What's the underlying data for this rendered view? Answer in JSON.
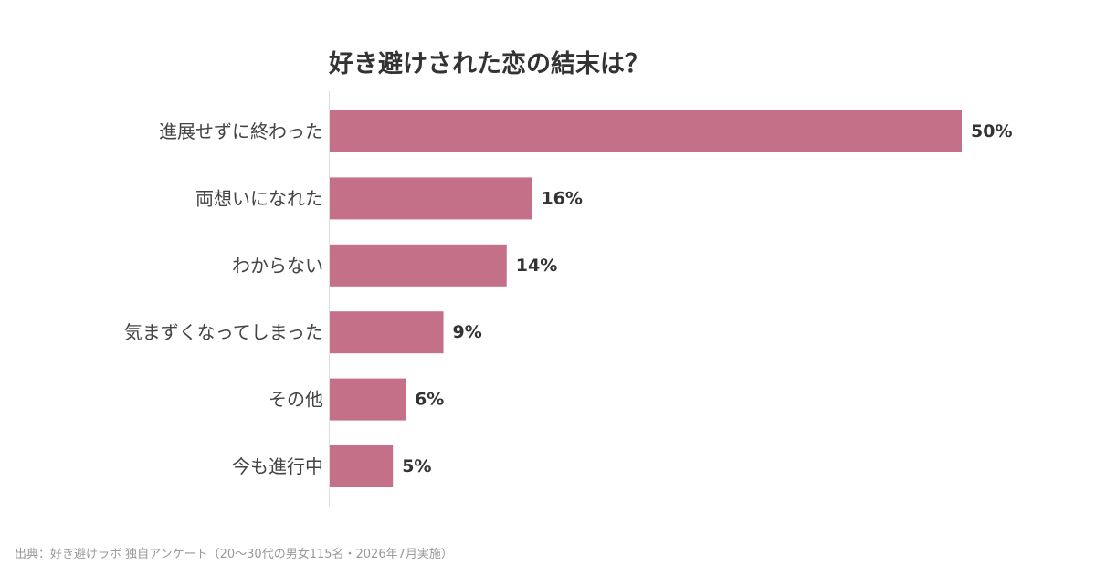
{
  "chart_data": {
    "type": "bar",
    "orientation": "horizontal",
    "title": "好き避けされた恋の結末は？",
    "categories": [
      "進展せずに終わった",
      "両想いになれた",
      "わからない",
      "気まずくなってしまった",
      "その他",
      "今も進行中"
    ],
    "values": [
      50,
      16,
      14,
      9,
      6,
      5
    ],
    "data_labels": [
      "50%",
      "16%",
      "14%",
      "9%",
      "6%",
      "5%"
    ],
    "unit": "%",
    "xlim": [
      0,
      50
    ],
    "bar_color": "#c47089",
    "grid": false,
    "legend": "none"
  },
  "footer": {
    "source": "出典：好き避けラボ 独自アンケート（20〜30代の男女115名・2026年7月実施）"
  },
  "colors": {
    "title": "#333333",
    "label": "#444444",
    "value_label": "#333333",
    "source": "#999999",
    "axis": "#dddddd"
  }
}
